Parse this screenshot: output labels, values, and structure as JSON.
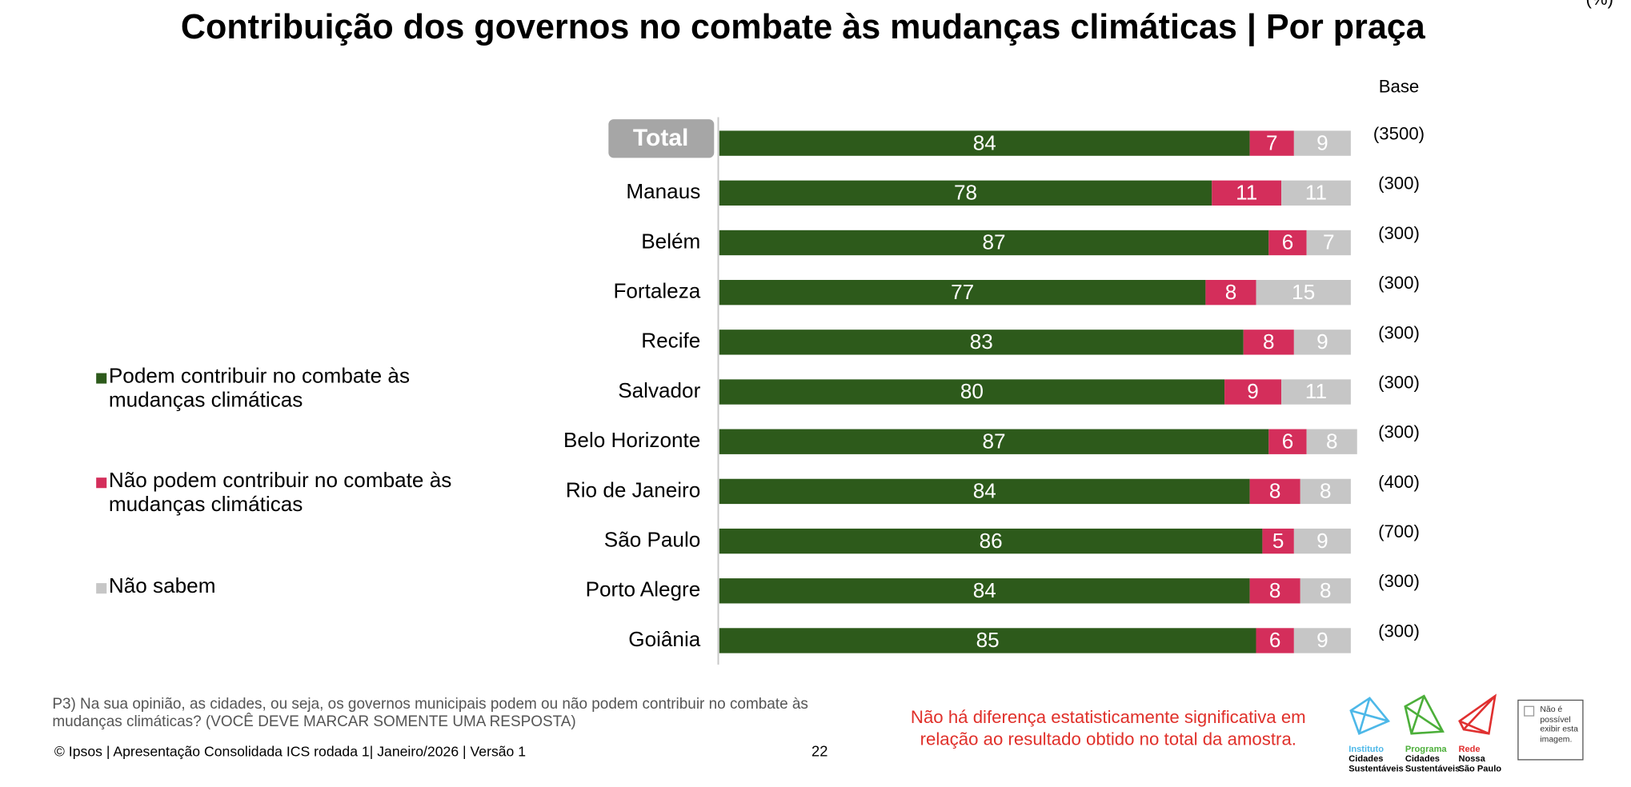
{
  "chart_data": {
    "type": "bar",
    "orientation": "horizontal",
    "stacked": true,
    "title": "Contribuição dos governos no combate às mudanças climáticas | Por praça",
    "unit": "(%)",
    "categories": [
      "Total",
      "Manaus",
      "Belém",
      "Fortaleza",
      "Recife",
      "Salvador",
      "Belo Horizonte",
      "Rio de Janeiro",
      "São Paulo",
      "Porto Alegre",
      "Goiânia"
    ],
    "series": [
      {
        "name": "Podem contribuir no combate às mudanças climáticas",
        "color": "#2d5a1b",
        "values": [
          84,
          78,
          87,
          77,
          83,
          80,
          87,
          84,
          86,
          84,
          85
        ]
      },
      {
        "name": "Não podem contribuir no combate às mudanças climáticas",
        "color": "#d42e5b",
        "values": [
          7,
          11,
          6,
          8,
          8,
          9,
          6,
          8,
          5,
          8,
          6
        ]
      },
      {
        "name": "Não sabem",
        "color": "#c6c6c6",
        "values": [
          9,
          11,
          7,
          15,
          9,
          11,
          8,
          8,
          9,
          8,
          9
        ]
      }
    ],
    "xlim": [
      0,
      100
    ],
    "base_label": "Base",
    "bases": [
      "(3500)",
      "(300)",
      "(300)",
      "(300)",
      "(300)",
      "(300)",
      "(300)",
      "(400)",
      "(700)",
      "(300)",
      "(300)"
    ],
    "note": "Não há diferença estatisticamente significativa em relação ao resultado obtido no total da amostra."
  },
  "footer": {
    "question": "P3) Na sua opinião, as cidades, ou seja, os governos municipais podem ou não podem contribuir no combate às mudanças climáticas? (VOCÊ DEVE MARCAR SOMENTE UMA RESPOSTA)",
    "copyright": "© Ipsos | Apresentação Consolidada ICS rodada 1| Janeiro/2026 | Versão 1",
    "page": "22",
    "logos": [
      [
        "Instituto",
        "Cidades",
        "Sustentáveis"
      ],
      [
        "Programa",
        "Cidades",
        "Sustentáveis"
      ],
      [
        "Rede",
        "Nossa",
        "São Paulo"
      ]
    ],
    "broken_image": "Não é possível exibir esta imagem."
  }
}
